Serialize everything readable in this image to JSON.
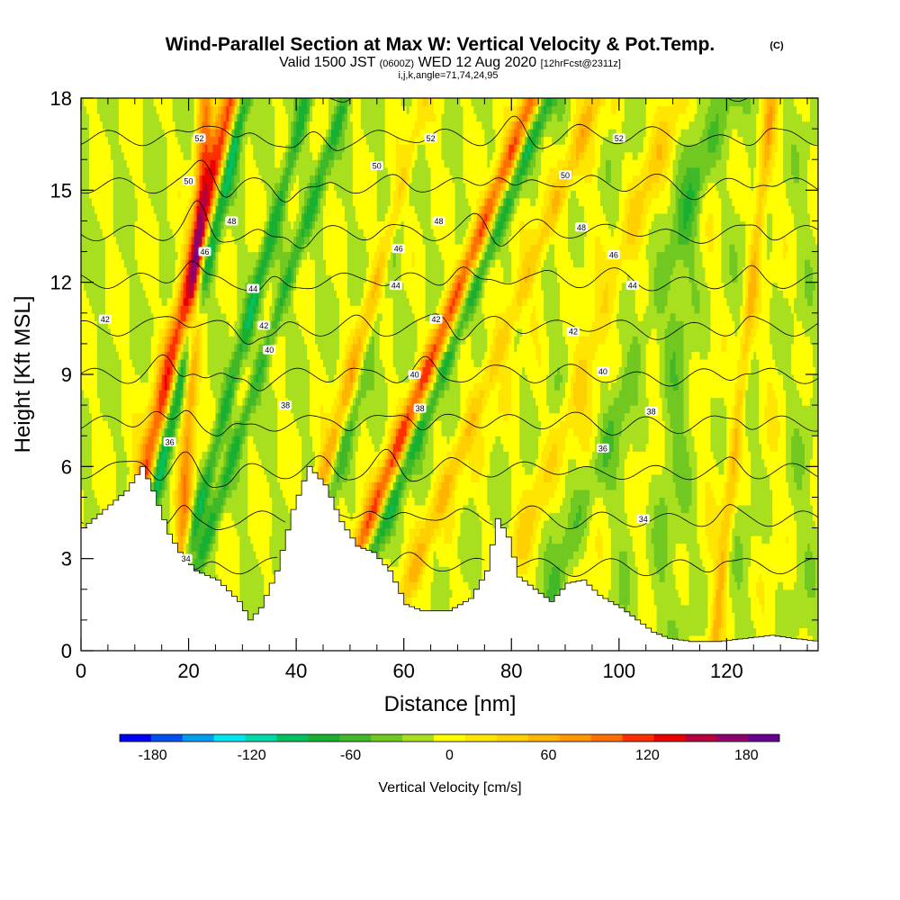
{
  "chart_data": {
    "type": "heatmap",
    "title": "Wind-Parallel Section at Max W: Vertical Velocity & Pot.Temp.",
    "title_mark": "(C)",
    "subtitle": {
      "valid": "Valid 1500 JST",
      "utc": "(0600Z)",
      "date": "WED 12 Aug 2020",
      "forecast": "[12hrFcst@2311z]"
    },
    "subtitle2": "i,j,k,angle=71,74,24,95",
    "xlabel": "Distance [nm]",
    "ylabel": "Height [Kft MSL]",
    "xlim": [
      0,
      137
    ],
    "ylim": [
      0,
      18
    ],
    "xticks": [
      0,
      20,
      40,
      60,
      80,
      100,
      120
    ],
    "yticks": [
      0,
      3,
      6,
      9,
      12,
      15,
      18
    ],
    "colorbar": {
      "label": "Vertical Velocity [cm/s]",
      "ticks": [
        -180,
        -120,
        -60,
        0,
        60,
        120,
        180
      ],
      "tick_labels": [
        "-180",
        "-120",
        "-60",
        "0",
        "60",
        "120",
        "180"
      ],
      "levels": [
        -200,
        -180,
        -160,
        -140,
        -120,
        -100,
        -80,
        -60,
        -40,
        -20,
        0,
        20,
        40,
        60,
        80,
        100,
        120,
        140,
        160,
        180,
        200
      ],
      "colors": [
        "#0000f5",
        "#0050f0",
        "#009cf0",
        "#00e5f0",
        "#00d8a8",
        "#00c060",
        "#18b030",
        "#40b828",
        "#70c820",
        "#a8e020",
        "#ffff00",
        "#ffe600",
        "#ffd000",
        "#ffb400",
        "#ff9600",
        "#ff7000",
        "#ff3000",
        "#e80000",
        "#b8003c",
        "#8c0070",
        "#6a0090"
      ]
    },
    "terrain_kft": [
      [
        0,
        4.0
      ],
      [
        4,
        4.6
      ],
      [
        8,
        5.2
      ],
      [
        11,
        6.0
      ],
      [
        13,
        5.2
      ],
      [
        16,
        3.8
      ],
      [
        18,
        3.2
      ],
      [
        21,
        2.6
      ],
      [
        25,
        2.3
      ],
      [
        29,
        1.6
      ],
      [
        31,
        1.0
      ],
      [
        33,
        1.4
      ],
      [
        36,
        2.6
      ],
      [
        39,
        4.6
      ],
      [
        42,
        6.0
      ],
      [
        45,
        5.4
      ],
      [
        48,
        4.2
      ],
      [
        51,
        3.4
      ],
      [
        54,
        3.2
      ],
      [
        57,
        2.6
      ],
      [
        60,
        1.5
      ],
      [
        63,
        1.3
      ],
      [
        68,
        1.3
      ],
      [
        72,
        1.7
      ],
      [
        75,
        2.6
      ],
      [
        77,
        4.3
      ],
      [
        79,
        3.7
      ],
      [
        81,
        2.4
      ],
      [
        84,
        2.0
      ],
      [
        87,
        1.6
      ],
      [
        90,
        2.2
      ],
      [
        93,
        2.3
      ],
      [
        96,
        1.8
      ],
      [
        100,
        1.4
      ],
      [
        103,
        1.0
      ],
      [
        106,
        0.6
      ],
      [
        109,
        0.4
      ],
      [
        113,
        0.3
      ],
      [
        118,
        0.3
      ],
      [
        123,
        0.4
      ],
      [
        128,
        0.5
      ],
      [
        132,
        0.4
      ],
      [
        137,
        0.3
      ]
    ],
    "updraft_bands": [
      {
        "x0": 10,
        "slope": 0.13,
        "width": 2.2,
        "w": 140
      },
      {
        "x0": 43,
        "slope": 0.16,
        "width": 2.0,
        "w": 110
      },
      {
        "x0": 53,
        "slope": 0.22,
        "width": 1.8,
        "w": 120
      },
      {
        "x0": 66,
        "slope": 0.22,
        "width": 2.8,
        "w": 75
      },
      {
        "x0": 19,
        "slope": 0.03,
        "width": 1.4,
        "w": 90
      },
      {
        "x0": 83,
        "slope": 0.2,
        "width": 2.6,
        "w": 40
      },
      {
        "x0": 120,
        "slope": 0.06,
        "width": 1.2,
        "w": 60
      }
    ],
    "downdraft_bands": [
      {
        "x0": 12,
        "slope": 0.13,
        "width": 1.5,
        "w": -130
      },
      {
        "x0": 21,
        "slope": 0.15,
        "width": 1.3,
        "w": -70
      },
      {
        "x0": 24,
        "slope": 0.18,
        "width": 1.3,
        "w": -60
      },
      {
        "x0": 44.5,
        "slope": 0.15,
        "width": 1.6,
        "w": -100
      },
      {
        "x0": 56,
        "slope": 0.22,
        "width": 1.5,
        "w": -70
      },
      {
        "x0": 67,
        "slope": 0.22,
        "width": 1.6,
        "w": -50
      },
      {
        "x0": 92,
        "slope": 0.2,
        "width": 2.2,
        "w": -30
      },
      {
        "x0": 108,
        "slope": 0.05,
        "width": 2.5,
        "w": -20
      }
    ],
    "theta_levels": [
      34,
      36,
      38,
      40,
      42,
      44,
      46,
      48,
      50,
      52
    ],
    "theta_labels": [
      {
        "x": 4.5,
        "y": 10.8,
        "text": "42"
      },
      {
        "x": 19.5,
        "y": 3.0,
        "text": "34"
      },
      {
        "x": 16.5,
        "y": 6.8,
        "text": "36"
      },
      {
        "x": 38.0,
        "y": 8.0,
        "text": "38"
      },
      {
        "x": 35.0,
        "y": 9.8,
        "text": "40"
      },
      {
        "x": 34.0,
        "y": 10.6,
        "text": "42"
      },
      {
        "x": 32.0,
        "y": 11.8,
        "text": "44"
      },
      {
        "x": 23.0,
        "y": 13.0,
        "text": "46"
      },
      {
        "x": 28.0,
        "y": 14.0,
        "text": "48"
      },
      {
        "x": 20.0,
        "y": 15.3,
        "text": "50"
      },
      {
        "x": 22.0,
        "y": 16.7,
        "text": "52"
      },
      {
        "x": 62.0,
        "y": 9.0,
        "text": "40"
      },
      {
        "x": 63.0,
        "y": 7.9,
        "text": "38"
      },
      {
        "x": 66.0,
        "y": 10.8,
        "text": "42"
      },
      {
        "x": 58.5,
        "y": 11.9,
        "text": "44"
      },
      {
        "x": 59.0,
        "y": 13.1,
        "text": "46"
      },
      {
        "x": 66.5,
        "y": 14.0,
        "text": "48"
      },
      {
        "x": 55.0,
        "y": 15.8,
        "text": "50"
      },
      {
        "x": 65.0,
        "y": 16.7,
        "text": "52"
      },
      {
        "x": 106.0,
        "y": 7.8,
        "text": "38"
      },
      {
        "x": 97.0,
        "y": 6.6,
        "text": "36"
      },
      {
        "x": 104.5,
        "y": 4.3,
        "text": "34"
      },
      {
        "x": 97.0,
        "y": 9.1,
        "text": "40"
      },
      {
        "x": 91.5,
        "y": 10.4,
        "text": "42"
      },
      {
        "x": 102.5,
        "y": 11.9,
        "text": "44"
      },
      {
        "x": 99.0,
        "y": 12.9,
        "text": "46"
      },
      {
        "x": 93.0,
        "y": 13.8,
        "text": "48"
      },
      {
        "x": 90.0,
        "y": 15.5,
        "text": "50"
      },
      {
        "x": 100.0,
        "y": 16.7,
        "text": "52"
      }
    ]
  }
}
